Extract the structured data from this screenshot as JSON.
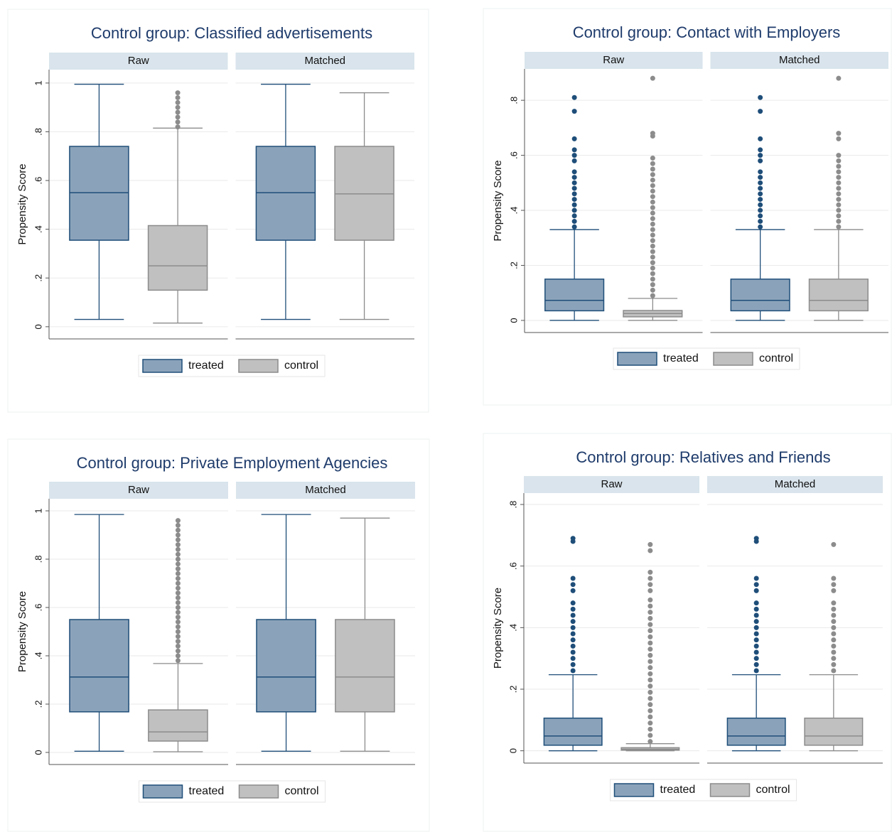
{
  "chart_data": [
    {
      "type": "box",
      "title": "Control group: Classified advertisements",
      "ylabel": "Propensity Score",
      "facets": [
        "Raw",
        "Matched"
      ],
      "ylim": [
        -0.05,
        1.055
      ],
      "yticks": [
        0,
        {
          "value": 0.2,
          "label": ".2"
        },
        {
          "value": 0.4,
          "label": ".4"
        },
        {
          "value": 0.6,
          "label": ".6"
        },
        {
          "value": 0.8,
          "label": ".8"
        },
        1
      ],
      "grid": true,
      "series": [
        {
          "name": "treated",
          "color": "#8ba3ba",
          "line_color": "#1f4e79",
          "stats": [
            {
              "whisker_low": 0.03,
              "q1": 0.355,
              "median": 0.55,
              "q3": 0.74,
              "whisker_high": 0.995,
              "outliers": []
            },
            {
              "whisker_low": 0.03,
              "q1": 0.355,
              "median": 0.55,
              "q3": 0.74,
              "whisker_high": 0.995,
              "outliers": []
            }
          ]
        },
        {
          "name": "control",
          "color": "#c0c0c0",
          "line_color": "#8c8c8c",
          "stats": [
            {
              "whisker_low": 0.015,
              "q1": 0.15,
              "median": 0.25,
              "q3": 0.415,
              "whisker_high": 0.815,
              "outliers": [
                0.82,
                0.84,
                0.86,
                0.88,
                0.9,
                0.92,
                0.94,
                0.96
              ]
            },
            {
              "whisker_low": 0.03,
              "q1": 0.355,
              "median": 0.545,
              "q3": 0.74,
              "whisker_high": 0.96,
              "outliers": []
            }
          ]
        }
      ]
    },
    {
      "type": "box",
      "title": "Control group: Contact with Employers",
      "ylabel": "Propensity Score",
      "facets": [
        "Raw",
        "Matched"
      ],
      "ylim": [
        -0.044,
        0.914
      ],
      "yticks": [
        0,
        {
          "value": 0.2,
          "label": ".2"
        },
        {
          "value": 0.4,
          "label": ".4"
        },
        {
          "value": 0.6,
          "label": ".6"
        },
        {
          "value": 0.8,
          "label": ".8"
        }
      ],
      "grid": true,
      "series": [
        {
          "name": "treated",
          "color": "#8ba3ba",
          "line_color": "#1f4e79",
          "stats": [
            {
              "whisker_low": 0.0,
              "q1": 0.035,
              "median": 0.073,
              "q3": 0.15,
              "whisker_high": 0.33,
              "outliers": [
                0.34,
                0.36,
                0.38,
                0.4,
                0.42,
                0.44,
                0.46,
                0.48,
                0.5,
                0.52,
                0.54,
                0.58,
                0.6,
                0.62,
                0.66,
                0.76,
                0.81
              ]
            },
            {
              "whisker_low": 0.0,
              "q1": 0.035,
              "median": 0.073,
              "q3": 0.15,
              "whisker_high": 0.33,
              "outliers": [
                0.34,
                0.36,
                0.38,
                0.4,
                0.42,
                0.44,
                0.46,
                0.48,
                0.5,
                0.52,
                0.54,
                0.58,
                0.6,
                0.62,
                0.66,
                0.76,
                0.81
              ]
            }
          ]
        },
        {
          "name": "control",
          "color": "#c0c0c0",
          "line_color": "#8c8c8c",
          "stats": [
            {
              "whisker_low": 0.0,
              "q1": 0.013,
              "median": 0.025,
              "q3": 0.036,
              "whisker_high": 0.08,
              "outliers": [
                0.09,
                0.11,
                0.13,
                0.15,
                0.17,
                0.19,
                0.21,
                0.23,
                0.25,
                0.27,
                0.29,
                0.31,
                0.33,
                0.35,
                0.37,
                0.39,
                0.41,
                0.43,
                0.45,
                0.47,
                0.49,
                0.51,
                0.53,
                0.55,
                0.57,
                0.59,
                0.67,
                0.68,
                0.88
              ]
            },
            {
              "whisker_low": 0.0,
              "q1": 0.035,
              "median": 0.073,
              "q3": 0.15,
              "whisker_high": 0.33,
              "outliers": [
                0.34,
                0.36,
                0.38,
                0.4,
                0.42,
                0.44,
                0.46,
                0.48,
                0.5,
                0.52,
                0.54,
                0.56,
                0.58,
                0.6,
                0.66,
                0.68,
                0.88
              ]
            }
          ]
        }
      ]
    },
    {
      "type": "box",
      "title": "Control group: Private Employment Agencies",
      "ylabel": "Propensity Score",
      "facets": [
        "Raw",
        "Matched"
      ],
      "ylim": [
        -0.05,
        1.05
      ],
      "yticks": [
        0,
        {
          "value": 0.2,
          "label": ".2"
        },
        {
          "value": 0.4,
          "label": ".4"
        },
        {
          "value": 0.6,
          "label": ".6"
        },
        {
          "value": 0.8,
          "label": ".8"
        },
        1
      ],
      "grid": true,
      "series": [
        {
          "name": "treated",
          "color": "#8ba3ba",
          "line_color": "#1f4e79",
          "stats": [
            {
              "whisker_low": 0.005,
              "q1": 0.168,
              "median": 0.312,
              "q3": 0.55,
              "whisker_high": 0.985,
              "outliers": []
            },
            {
              "whisker_low": 0.005,
              "q1": 0.168,
              "median": 0.312,
              "q3": 0.55,
              "whisker_high": 0.985,
              "outliers": []
            }
          ]
        },
        {
          "name": "control",
          "color": "#c0c0c0",
          "line_color": "#8c8c8c",
          "stats": [
            {
              "whisker_low": 0.003,
              "q1": 0.047,
              "median": 0.085,
              "q3": 0.176,
              "whisker_high": 0.368,
              "outliers": [
                0.38,
                0.4,
                0.42,
                0.44,
                0.46,
                0.48,
                0.5,
                0.52,
                0.54,
                0.56,
                0.58,
                0.6,
                0.62,
                0.64,
                0.66,
                0.68,
                0.7,
                0.72,
                0.74,
                0.76,
                0.78,
                0.8,
                0.82,
                0.84,
                0.86,
                0.88,
                0.9,
                0.92,
                0.94,
                0.96
              ]
            },
            {
              "whisker_low": 0.005,
              "q1": 0.168,
              "median": 0.312,
              "q3": 0.55,
              "whisker_high": 0.97,
              "outliers": []
            }
          ]
        }
      ]
    },
    {
      "type": "box",
      "title": "Control group: Relatives and Friends",
      "ylabel": "Propensity Score",
      "facets": [
        "Raw",
        "Matched"
      ],
      "ylim": [
        -0.04,
        0.837
      ],
      "yticks": [
        0,
        {
          "value": 0.2,
          "label": ".2"
        },
        {
          "value": 0.4,
          "label": ".4"
        },
        {
          "value": 0.6,
          "label": ".6"
        },
        {
          "value": 0.8,
          "label": ".8"
        }
      ],
      "grid": true,
      "series": [
        {
          "name": "treated",
          "color": "#8ba3ba",
          "line_color": "#1f4e79",
          "stats": [
            {
              "whisker_low": 0.0,
              "q1": 0.018,
              "median": 0.048,
              "q3": 0.106,
              "whisker_high": 0.247,
              "outliers": [
                0.26,
                0.28,
                0.3,
                0.32,
                0.34,
                0.36,
                0.38,
                0.4,
                0.42,
                0.44,
                0.46,
                0.48,
                0.52,
                0.54,
                0.56,
                0.68,
                0.69
              ]
            },
            {
              "whisker_low": 0.0,
              "q1": 0.018,
              "median": 0.048,
              "q3": 0.106,
              "whisker_high": 0.247,
              "outliers": [
                0.26,
                0.28,
                0.3,
                0.32,
                0.34,
                0.36,
                0.38,
                0.4,
                0.42,
                0.44,
                0.46,
                0.48,
                0.52,
                0.54,
                0.56,
                0.68,
                0.69
              ]
            }
          ]
        },
        {
          "name": "control",
          "color": "#c0c0c0",
          "line_color": "#8c8c8c",
          "stats": [
            {
              "whisker_low": 0.0,
              "q1": 0.002,
              "median": 0.005,
              "q3": 0.01,
              "whisker_high": 0.023,
              "outliers": [
                0.03,
                0.05,
                0.07,
                0.09,
                0.11,
                0.13,
                0.15,
                0.17,
                0.19,
                0.21,
                0.23,
                0.25,
                0.27,
                0.29,
                0.31,
                0.33,
                0.35,
                0.37,
                0.39,
                0.41,
                0.43,
                0.45,
                0.47,
                0.49,
                0.52,
                0.54,
                0.56,
                0.58,
                0.65,
                0.67
              ]
            },
            {
              "whisker_low": 0.0,
              "q1": 0.018,
              "median": 0.048,
              "q3": 0.106,
              "whisker_high": 0.247,
              "outliers": [
                0.26,
                0.28,
                0.3,
                0.32,
                0.34,
                0.36,
                0.38,
                0.4,
                0.42,
                0.44,
                0.46,
                0.48,
                0.52,
                0.54,
                0.56,
                0.67
              ]
            }
          ]
        }
      ]
    }
  ]
}
